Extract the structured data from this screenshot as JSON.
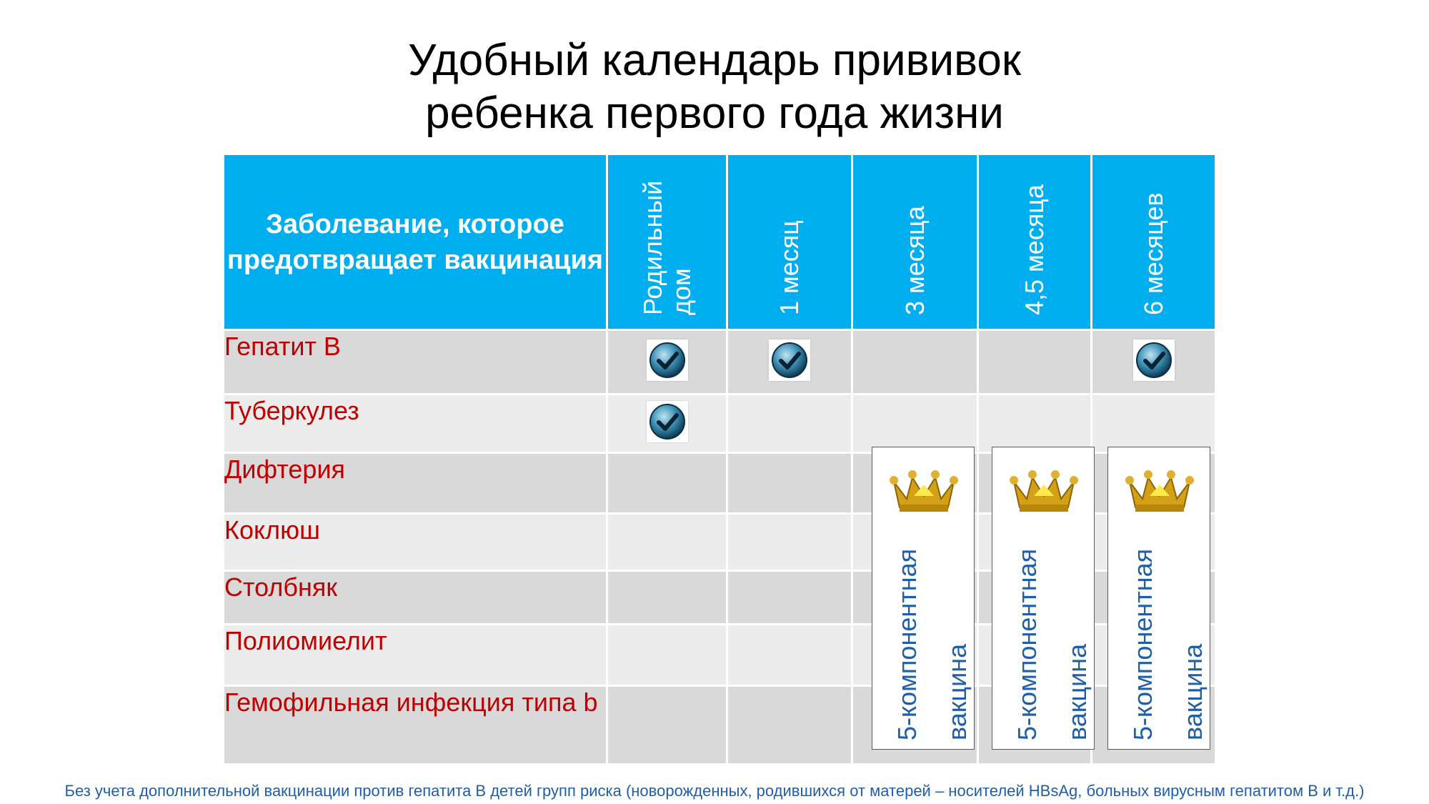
{
  "title": {
    "line1": "Удобный календарь прививок",
    "line2": "ребенка первого года жизни"
  },
  "table": {
    "header_disease": "Заболевание, которое предотвращает вакцинация",
    "columns": [
      "Родильный дом",
      "1 месяц",
      "3 месяца",
      "4,5 месяца",
      "6 месяцев"
    ],
    "rows": [
      {
        "disease": "Гепатит В",
        "checks": [
          true,
          true,
          false,
          false,
          true
        ]
      },
      {
        "disease": "Туберкулез",
        "checks": [
          true,
          false,
          false,
          false,
          false
        ]
      },
      {
        "disease": "Дифтерия",
        "checks": [
          false,
          false,
          false,
          false,
          false
        ]
      },
      {
        "disease": "Коклюш",
        "checks": [
          false,
          false,
          false,
          false,
          false
        ]
      },
      {
        "disease": "Столбняк",
        "checks": [
          false,
          false,
          false,
          false,
          false
        ]
      },
      {
        "disease": "Полиомиелит",
        "checks": [
          false,
          false,
          false,
          false,
          false
        ]
      },
      {
        "disease": "Гемофильная инфекция типа b",
        "checks": [
          false,
          false,
          false,
          false,
          false
        ]
      }
    ]
  },
  "vaccine_boxes": [
    {
      "label": "5-компонентная вакцина",
      "icon": "crown-icon"
    },
    {
      "label": "5-компонентная вакцина",
      "icon": "crown-icon"
    },
    {
      "label": "5-компонентная вакцина",
      "icon": "crown-icon"
    }
  ],
  "check_icon": "checkmark-icon",
  "colors": {
    "header_bg": "#00adef",
    "disease_text": "#c00000",
    "vaccine_text": "#1f5fa8",
    "row_dark": "#d9d9d9",
    "row_light": "#ececec"
  },
  "footnote": "Без учета дополнительной вакцинации против гепатита В детей групп риска (новорожденных, родившихся от матерей – носителей HBsAg, больных вирусным гепатитом В и т.д.)"
}
